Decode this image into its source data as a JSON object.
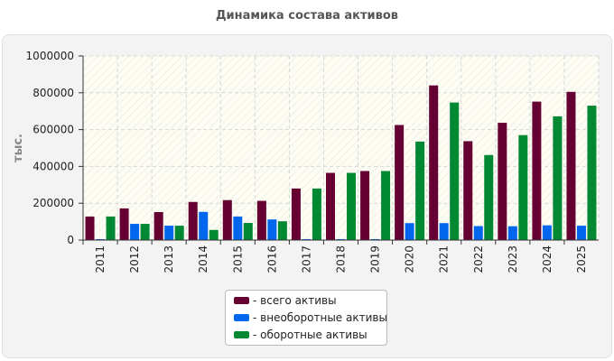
{
  "chart_data": {
    "type": "bar",
    "title": "Динамика состава активов",
    "ylabel": "тыс.",
    "xlabel": "",
    "ylim": [
      0,
      1000000
    ],
    "yticks": [
      0,
      200000,
      400000,
      600000,
      800000,
      1000000
    ],
    "grid": true,
    "legend_position": "bottom",
    "categories": [
      "2011",
      "2012",
      "2013",
      "2014",
      "2015",
      "2016",
      "2017",
      "2018",
      "2019",
      "2020",
      "2021",
      "2022",
      "2023",
      "2024",
      "2025"
    ],
    "series": [
      {
        "name": "- всего активы",
        "color": "#660033",
        "values": [
          128000,
          172000,
          152000,
          207000,
          217000,
          213000,
          280000,
          365000,
          375000,
          625000,
          840000,
          537000,
          637000,
          752000,
          805000
        ]
      },
      {
        "name": "- внеоборотные активы",
        "color": "#0066ee",
        "values": [
          5000,
          88000,
          78000,
          153000,
          128000,
          112000,
          5000,
          5000,
          5000,
          92000,
          92000,
          76000,
          75000,
          80000,
          78000
        ]
      },
      {
        "name": "- оборотные активы",
        "color": "#008833",
        "values": [
          128000,
          88000,
          78000,
          55000,
          93000,
          102000,
          280000,
          365000,
          375000,
          535000,
          747000,
          462000,
          570000,
          672000,
          730000
        ]
      }
    ]
  }
}
